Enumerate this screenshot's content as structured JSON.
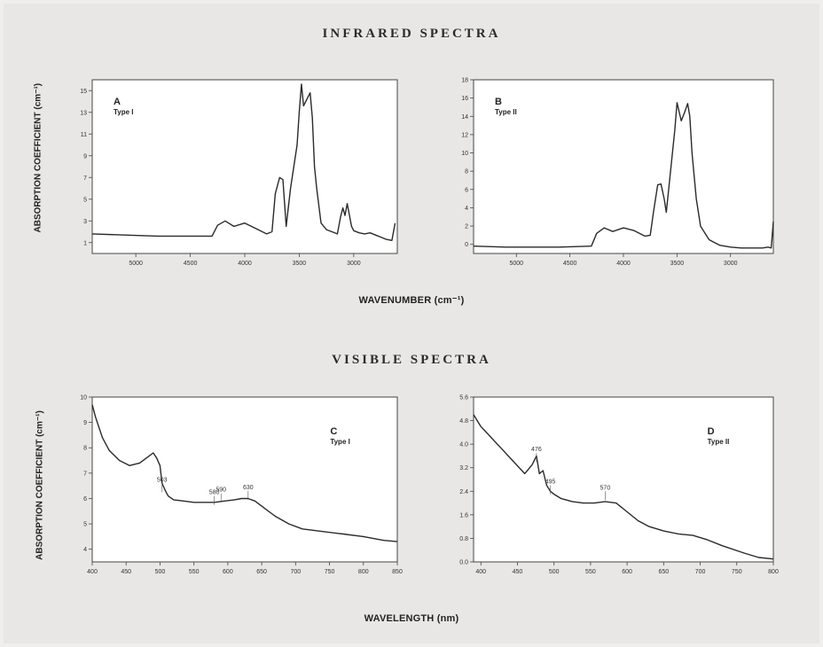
{
  "titles": {
    "infrared": "INFRARED SPECTRA",
    "visible": "VISIBLE SPECTRA"
  },
  "axis_labels": {
    "ir_y": "ABSORPTION COEFFICIENT (cm⁻¹)",
    "ir_x": "WAVENUMBER (cm⁻¹)",
    "vis_y": "ABSORPTION COEFFICIENT (cm⁻¹)",
    "vis_x": "WAVELENGTH (nm)"
  },
  "colors": {
    "line": "#2a2a2a",
    "plot_bg": "#ffffff",
    "page_bg": "#e9e7e5"
  },
  "chart_data": [
    {
      "id": "A",
      "type": "line",
      "panel_label": "A",
      "subtitle": "Type I",
      "xlabel": "WAVENUMBER (cm⁻¹)",
      "ylabel": "ABSORPTION COEFFICIENT (cm⁻¹)",
      "xlim": [
        5400,
        2600
      ],
      "ylim": [
        0,
        16
      ],
      "x_ticks": [
        5000,
        4500,
        4000,
        3500,
        3000
      ],
      "x_tick_labels": [
        "5000",
        "4500",
        "4000",
        "3500",
        "3000"
      ],
      "y_ticks": [
        1,
        3,
        5,
        7,
        9,
        11,
        13,
        15
      ],
      "y_tick_labels": [
        "1",
        "3",
        "5",
        "7",
        "9",
        "11",
        "13",
        "15"
      ],
      "grid": false,
      "series": [
        {
          "x": [
            5400,
            5100,
            4800,
            4300,
            4250,
            4180,
            4100,
            4000,
            3900,
            3800,
            3750,
            3720,
            3680,
            3650,
            3620,
            3580,
            3520,
            3500,
            3480,
            3460,
            3430,
            3400,
            3380,
            3360,
            3340,
            3300,
            3250,
            3200,
            3150,
            3120,
            3100,
            3080,
            3060,
            3020,
            3000,
            2950,
            2900,
            2850,
            2800,
            2750,
            2700,
            2650,
            2620
          ],
          "y": [
            1.8,
            1.7,
            1.6,
            1.6,
            2.6,
            3.0,
            2.5,
            2.8,
            2.3,
            1.8,
            2.0,
            5.5,
            7.0,
            6.8,
            2.5,
            6.0,
            10.0,
            13.0,
            15.6,
            13.6,
            14.2,
            14.8,
            12.5,
            8.0,
            6.0,
            2.8,
            2.2,
            2.0,
            1.8,
            3.4,
            4.2,
            3.5,
            4.6,
            2.5,
            2.1,
            1.9,
            1.8,
            1.9,
            1.7,
            1.5,
            1.3,
            1.2,
            2.8
          ]
        }
      ]
    },
    {
      "id": "B",
      "type": "line",
      "panel_label": "B",
      "subtitle": "Type II",
      "xlabel": "WAVENUMBER (cm⁻¹)",
      "ylabel": "ABSORPTION COEFFICIENT (cm⁻¹)",
      "xlim": [
        5400,
        2600
      ],
      "ylim": [
        -1,
        18
      ],
      "x_ticks": [
        5000,
        4500,
        4000,
        3500,
        3000
      ],
      "x_tick_labels": [
        "5000",
        "4500",
        "4000",
        "3500",
        "3000"
      ],
      "y_ticks": [
        0,
        2,
        4,
        6,
        8,
        10,
        12,
        14,
        16,
        18
      ],
      "y_tick_labels": [
        "0",
        "2",
        "4",
        "6",
        "8",
        "10",
        "12",
        "14",
        "16",
        "18"
      ],
      "grid": false,
      "series": [
        {
          "x": [
            5400,
            5100,
            4800,
            4600,
            4300,
            4250,
            4180,
            4100,
            4000,
            3900,
            3800,
            3750,
            3720,
            3680,
            3650,
            3620,
            3600,
            3560,
            3520,
            3500,
            3480,
            3460,
            3430,
            3400,
            3380,
            3360,
            3320,
            3280,
            3200,
            3100,
            3000,
            2900,
            2800,
            2700,
            2650,
            2620,
            2600
          ],
          "y": [
            -0.2,
            -0.3,
            -0.3,
            -0.3,
            -0.2,
            1.2,
            1.8,
            1.4,
            1.8,
            1.5,
            0.9,
            1.0,
            3.5,
            6.5,
            6.6,
            5.0,
            3.5,
            8.0,
            12.5,
            15.5,
            14.5,
            13.5,
            14.4,
            15.4,
            14.0,
            10.0,
            5.0,
            2.0,
            0.5,
            -0.1,
            -0.3,
            -0.4,
            -0.4,
            -0.4,
            -0.3,
            -0.4,
            2.5
          ]
        }
      ]
    },
    {
      "id": "C",
      "type": "line",
      "panel_label": "C",
      "subtitle": "Type I",
      "xlabel": "WAVELENGTH (nm)",
      "ylabel": "ABSORPTION COEFFICIENT (cm⁻¹)",
      "xlim": [
        400,
        850
      ],
      "ylim": [
        3.5,
        10
      ],
      "x_ticks": [
        400,
        450,
        500,
        550,
        600,
        650,
        700,
        750,
        800,
        850
      ],
      "x_tick_labels": [
        "400",
        "450",
        "500",
        "550",
        "600",
        "650",
        "700",
        "750",
        "800",
        "850"
      ],
      "y_ticks": [
        4,
        5,
        6,
        7,
        8,
        9,
        10
      ],
      "y_tick_labels": [
        "4",
        "5",
        "6",
        "7",
        "8",
        "9",
        "10"
      ],
      "grid": false,
      "peak_labels": [
        {
          "x": 503,
          "y": 6.6,
          "text": "503"
        },
        {
          "x": 580,
          "y": 6.1,
          "text": "580"
        },
        {
          "x": 590,
          "y": 6.2,
          "text": "590"
        },
        {
          "x": 630,
          "y": 6.3,
          "text": "630"
        }
      ],
      "series": [
        {
          "x": [
            400,
            405,
            415,
            425,
            440,
            455,
            470,
            480,
            490,
            495,
            500,
            503,
            508,
            512,
            520,
            535,
            550,
            565,
            580,
            595,
            610,
            620,
            630,
            640,
            655,
            670,
            690,
            710,
            740,
            770,
            800,
            830,
            850
          ],
          "y": [
            9.7,
            9.2,
            8.4,
            7.9,
            7.5,
            7.3,
            7.4,
            7.6,
            7.8,
            7.6,
            7.3,
            6.6,
            6.3,
            6.1,
            5.95,
            5.9,
            5.85,
            5.85,
            5.85,
            5.9,
            5.95,
            6.0,
            6.0,
            5.9,
            5.6,
            5.3,
            5.0,
            4.8,
            4.7,
            4.6,
            4.5,
            4.35,
            4.3
          ]
        }
      ]
    },
    {
      "id": "D",
      "type": "line",
      "panel_label": "D",
      "subtitle": "Type II",
      "xlabel": "WAVELENGTH (nm)",
      "ylabel": "ABSORPTION COEFFICIENT (cm⁻¹)",
      "xlim": [
        390,
        800
      ],
      "ylim": [
        0,
        5.6
      ],
      "x_ticks": [
        400,
        450,
        500,
        550,
        600,
        650,
        700,
        750,
        800
      ],
      "x_tick_labels": [
        "400",
        "450",
        "500",
        "550",
        "600",
        "650",
        "700",
        "750",
        "800"
      ],
      "y_ticks": [
        0.0,
        0.8,
        1.6,
        2.4,
        3.2,
        4.0,
        4.8,
        5.6
      ],
      "y_tick_labels": [
        "0.0",
        "0.8",
        "1.6",
        "2.4",
        "3.2",
        "4.0",
        "4.8",
        "5.6"
      ],
      "grid": false,
      "peak_labels": [
        {
          "x": 476,
          "y": 3.7,
          "text": "476"
        },
        {
          "x": 495,
          "y": 2.6,
          "text": "495"
        },
        {
          "x": 570,
          "y": 2.4,
          "text": "570"
        }
      ],
      "series": [
        {
          "x": [
            390,
            400,
            415,
            430,
            445,
            460,
            470,
            476,
            480,
            485,
            490,
            495,
            500,
            510,
            525,
            540,
            555,
            570,
            585,
            600,
            615,
            630,
            650,
            670,
            690,
            710,
            730,
            760,
            780,
            800
          ],
          "y": [
            5.0,
            4.6,
            4.2,
            3.8,
            3.4,
            3.0,
            3.3,
            3.6,
            3.0,
            3.1,
            2.6,
            2.4,
            2.3,
            2.15,
            2.05,
            2.0,
            2.0,
            2.05,
            2.0,
            1.7,
            1.4,
            1.2,
            1.05,
            0.95,
            0.9,
            0.75,
            0.55,
            0.3,
            0.15,
            0.1
          ]
        }
      ]
    }
  ]
}
